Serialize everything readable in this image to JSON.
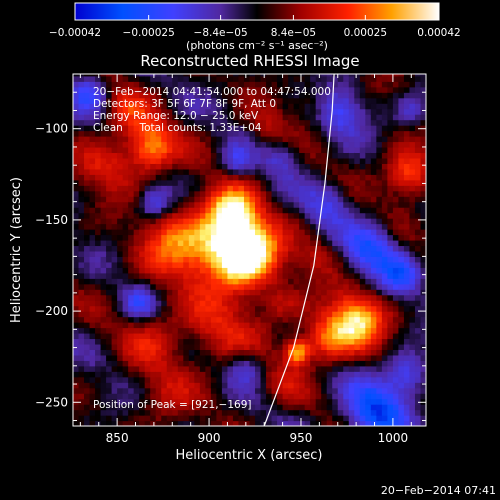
{
  "chart_data": {
    "type": "heatmap",
    "title": "Reconstructed RHESSI Image",
    "xlabel": "Heliocentric X (arcsec)",
    "ylabel": "Heliocentric Y (arcsec)",
    "xlim": [
      826,
      1018
    ],
    "ylim": [
      -263,
      -70
    ],
    "x_ticks": [
      850,
      900,
      950,
      1000
    ],
    "y_ticks": [
      -250,
      -200,
      -150,
      -100
    ],
    "x_tick_labels": [
      "850",
      "900",
      "950",
      "1000"
    ],
    "y_tick_labels": [
      "−250",
      "−200",
      "−150",
      "−100"
    ],
    "grid": false,
    "colorbar": {
      "range": [
        -0.00042,
        0.00042
      ],
      "tick_values": [
        -0.00042,
        -0.00025,
        -8.4e-05,
        8.4e-05,
        0.00025,
        0.00042
      ],
      "tick_labels": [
        "−0.00042",
        "−0.00025",
        "−8.4e−05",
        "8.4e−05",
        "0.00025",
        "0.00042"
      ],
      "unit_label": "(photons cm⁻² s⁻¹ asec⁻²)"
    },
    "info_lines": [
      "20−Feb−2014 04:41:54.000 to 04:47:54.000",
      "Detectors: 3F 5F 6F 7F 8F 9F, Att 0",
      "Energy Range: 12.0 − 25.0 keV",
      "Clean     Total counts: 1.33E+04"
    ],
    "peak_label": "Position of Peak = [921,−169]",
    "peak": [
      921,
      -169
    ],
    "sources": [
      {
        "x": 921,
        "y": -169,
        "r": 12,
        "amp": 0.00042
      },
      {
        "x": 905,
        "y": -160,
        "r": 16,
        "amp": 0.0003
      },
      {
        "x": 913,
        "y": -145,
        "r": 9,
        "amp": 0.00026
      },
      {
        "x": 868,
        "y": -110,
        "r": 9,
        "amp": 0.00034
      },
      {
        "x": 878,
        "y": -165,
        "r": 13,
        "amp": 0.00018
      },
      {
        "x": 845,
        "y": -120,
        "r": 11,
        "amp": 0.00016
      },
      {
        "x": 855,
        "y": -90,
        "r": 9,
        "amp": 0.00016
      },
      {
        "x": 905,
        "y": -210,
        "r": 16,
        "amp": 0.00016
      },
      {
        "x": 870,
        "y": -215,
        "r": 12,
        "amp": 0.00012
      },
      {
        "x": 980,
        "y": -205,
        "r": 11,
        "amp": 0.00036
      },
      {
        "x": 963,
        "y": -215,
        "r": 9,
        "amp": 0.00024
      },
      {
        "x": 948,
        "y": -222,
        "r": 5,
        "amp": 0.00034
      },
      {
        "x": 1008,
        "y": -125,
        "r": 9,
        "amp": 0.0003
      },
      {
        "x": 960,
        "y": -170,
        "r": 8,
        "amp": 0.0001
      },
      {
        "x": 940,
        "y": -195,
        "r": 8,
        "amp": 0.00012
      },
      {
        "x": 875,
        "y": -248,
        "r": 11,
        "amp": 0.0001
      },
      {
        "x": 932,
        "y": -100,
        "r": 8,
        "amp": 0.0001
      },
      {
        "x": 955,
        "y": -85,
        "r": 7,
        "amp": 8e-05
      },
      {
        "x": 940,
        "y": -240,
        "r": 9,
        "amp": 8e-05
      },
      {
        "x": 870,
        "y": -140,
        "r": 6,
        "amp": -0.0002
      },
      {
        "x": 862,
        "y": -195,
        "r": 6,
        "amp": -0.00018
      },
      {
        "x": 915,
        "y": -118,
        "r": 6,
        "amp": -0.00016
      },
      {
        "x": 988,
        "y": -165,
        "r": 10,
        "amp": -0.00026
      },
      {
        "x": 1005,
        "y": -180,
        "r": 8,
        "amp": -0.00022
      },
      {
        "x": 990,
        "y": -255,
        "r": 12,
        "amp": -0.00032
      },
      {
        "x": 1008,
        "y": -235,
        "r": 8,
        "amp": -0.00022
      },
      {
        "x": 965,
        "y": -140,
        "r": 9,
        "amp": -0.00016
      },
      {
        "x": 940,
        "y": -115,
        "r": 7,
        "amp": -0.00014
      },
      {
        "x": 972,
        "y": -90,
        "r": 9,
        "amp": -0.0002
      },
      {
        "x": 835,
        "y": -80,
        "r": 7,
        "amp": -0.0002
      },
      {
        "x": 920,
        "y": -230,
        "r": 7,
        "amp": -0.00016
      },
      {
        "x": 1010,
        "y": -90,
        "r": 6,
        "amp": -0.00014
      }
    ],
    "limb": [
      [
        930,
        -263
      ],
      [
        946,
        -220
      ],
      [
        957,
        -175
      ],
      [
        963,
        -130
      ],
      [
        967,
        -90
      ],
      [
        968,
        -70
      ]
    ]
  },
  "footer": {
    "timestamp": "20−Feb−2014 07:41"
  }
}
